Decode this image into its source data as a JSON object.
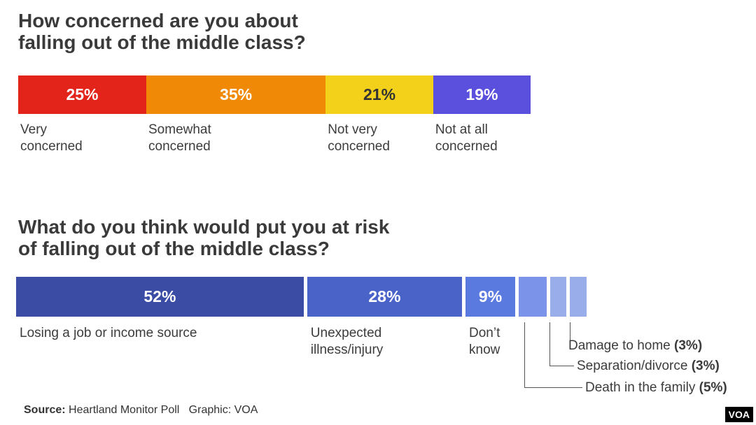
{
  "chart_data": [
    {
      "type": "bar",
      "title": "How concerned are you about\nfalling out of the middle class?",
      "categories": [
        "Very\nconcerned",
        "Somewhat\nconcerned",
        "Not very\nconcerned",
        "Not at all\nconcerned"
      ],
      "values": [
        25,
        35,
        21,
        19
      ],
      "value_labels": [
        "25%",
        "35%",
        "21%",
        "19%"
      ],
      "colors": [
        "#e3241b",
        "#f08a06",
        "#f3d11b",
        "#5b4fdd"
      ],
      "value_label_colors": [
        "#ffffff",
        "#ffffff",
        "#333333",
        "#ffffff"
      ]
    },
    {
      "type": "bar",
      "title": "What do you think would put you at risk\nof falling out of the middle class?",
      "categories": [
        "Losing a job or income source",
        "Unexpected\nillness/injury",
        "Don’t\nknow",
        "Death in the family",
        "Separation/divorce",
        "Damage to home"
      ],
      "values": [
        52,
        28,
        9,
        5,
        3,
        3
      ],
      "value_labels": [
        "52%",
        "28%",
        "9%",
        "(5%)",
        "(3%)",
        "(3%)"
      ],
      "colors": [
        "#3b4ca5",
        "#4a63c9",
        "#5a7ae0",
        "#7b93e8",
        "#9aadeb",
        "#9aadeb"
      ]
    }
  ],
  "footer": {
    "source_label": "Source:",
    "source_text": "Heartland Monitor Poll",
    "graphic_label": "Graphic: VOA",
    "logo": "VOA"
  }
}
